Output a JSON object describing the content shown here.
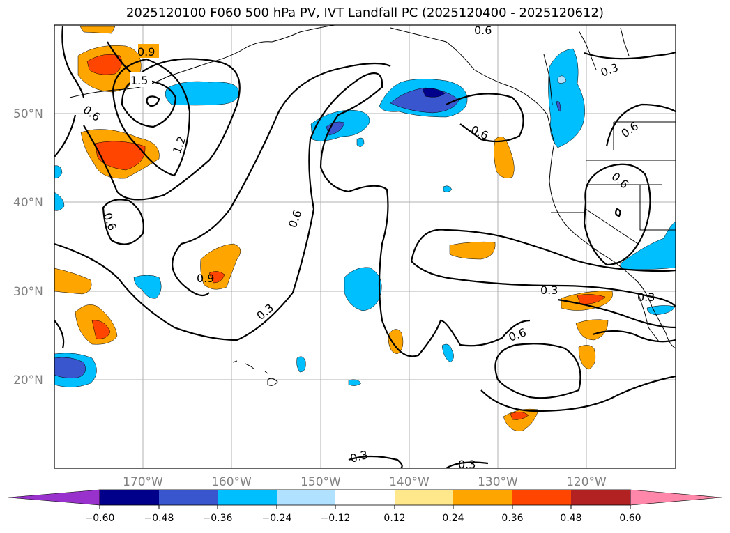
{
  "title": "2025120100 F060 500 hPa PV, IVT Landfall PC (2025120400 - 2025120612)",
  "map": {
    "lat_labels": [
      "50°N",
      "40°N",
      "30°N",
      "20°N"
    ],
    "lon_labels": [
      "170°W",
      "160°W",
      "150°W",
      "140°W",
      "130°W",
      "120°W"
    ],
    "contour_labels": [
      "0.9",
      "1.5",
      "0.6",
      "1.2",
      "0.6",
      "0.9",
      "0.3",
      "0.6",
      "0.6",
      "0.6",
      "0.3",
      "0.6",
      "0.6",
      "0.3",
      "0.6",
      "0.3",
      "0.3",
      "0.3"
    ]
  },
  "colorbar": {
    "colors": [
      "#9932cc",
      "#00008b",
      "#3a56cf",
      "#00bfff",
      "#b0e2ff",
      "#ffffff",
      "#ffe88c",
      "#ffa500",
      "#ff4500",
      "#b22222",
      "#ff88aa"
    ],
    "tick_labels": [
      "−0.60",
      "−0.48",
      "−0.36",
      "−0.24",
      "−0.12",
      "0.12",
      "0.24",
      "0.36",
      "0.48",
      "0.60"
    ]
  }
}
